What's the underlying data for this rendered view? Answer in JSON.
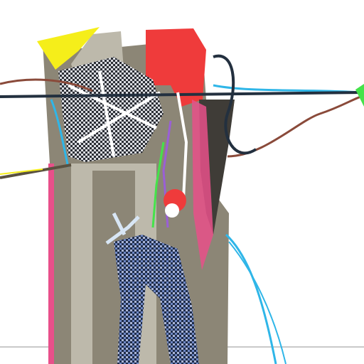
{
  "image": {
    "subject": "abstract-glitch-figure",
    "palette": {
      "background": "#ffffff",
      "body": "#8c8676",
      "body_dark": "#3f3c37",
      "body_light": "#bdb9ab",
      "red": "#ef3b3b",
      "pink": "#e8508a",
      "yellow": "#f5ee1a",
      "cyan": "#2fb6e8",
      "dark_line": "#23303f",
      "brown_line": "#8a4a3a",
      "accent_green": "#44e34a",
      "accent_purple": "#9a5fd6"
    }
  }
}
